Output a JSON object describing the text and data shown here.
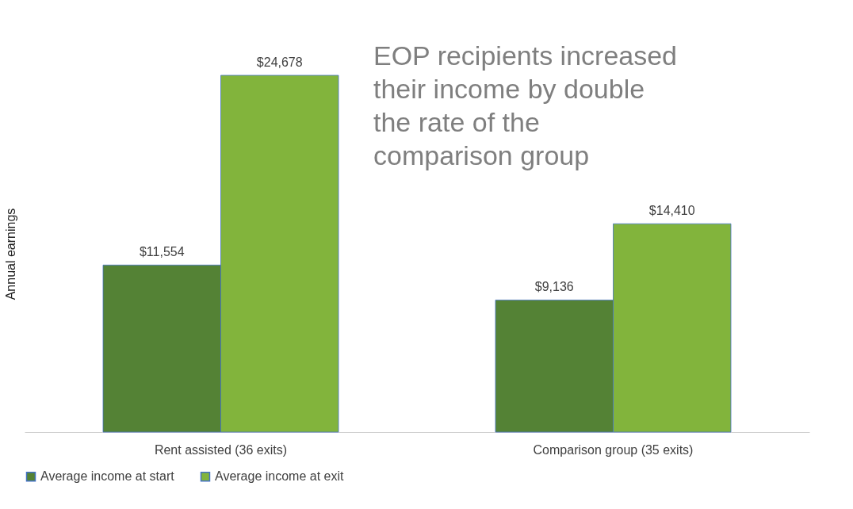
{
  "chart_data": {
    "type": "bar",
    "ylabel": "Annual earnings",
    "categories": [
      "Rent assisted (36 exits)",
      "Comparison group (35 exits)"
    ],
    "series": [
      {
        "name": "Average income at start",
        "color": "#548235",
        "values": [
          11554,
          9136
        ],
        "value_labels": [
          "$11,554",
          "$9,136"
        ]
      },
      {
        "name": "Average income at exit",
        "color": "#82b43c",
        "values": [
          24678,
          14410
        ],
        "value_labels": [
          "$24,678",
          "$14,410"
        ]
      }
    ],
    "legend": "bottom",
    "grid": false,
    "annotations": [
      "EOP recipients increased their income by double the rate of the comparison group"
    ]
  }
}
